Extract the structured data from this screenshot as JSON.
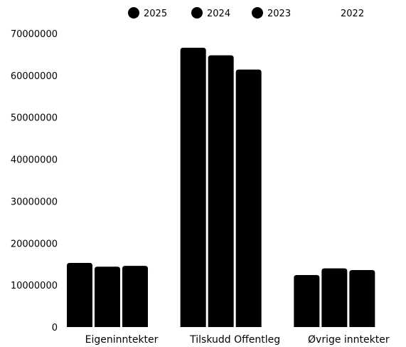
{
  "chart_data": {
    "type": "bar",
    "categories": [
      "Eigeninntekter",
      "Tilskudd Offentleg",
      "Øvrige inntekter"
    ],
    "series": [
      {
        "name": "2025",
        "values": [
          15300000,
          66600000,
          12400000
        ]
      },
      {
        "name": "2024",
        "values": [
          14400000,
          64800000,
          14000000
        ]
      },
      {
        "name": "2023",
        "values": [
          14600000,
          61400000,
          13600000
        ]
      },
      {
        "name": "2022",
        "values": [
          0,
          0,
          0
        ]
      }
    ],
    "ylim": [
      0,
      70000000
    ],
    "yticks": [
      "0",
      "10000000",
      "20000000",
      "30000000",
      "40000000",
      "50000000",
      "60000000",
      "70000000"
    ],
    "legend_placement": "top",
    "grid": false,
    "colors": {
      "bar": "#000000",
      "legend_marker": "#000000"
    }
  }
}
